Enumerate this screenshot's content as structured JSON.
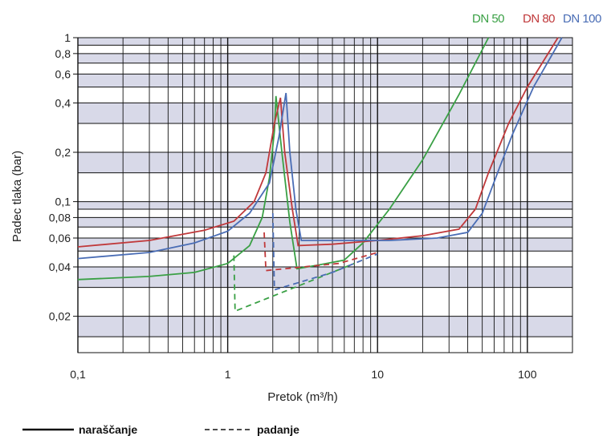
{
  "chart_data": {
    "type": "line",
    "xlabel": "Pretok (m³/h)",
    "ylabel": "Padec tlaka (bar)",
    "xscale": "log",
    "yscale": "log",
    "xlim": [
      0.1,
      200
    ],
    "ylim": [
      0.012,
      1
    ],
    "grid": true,
    "x_ticks": [
      {
        "value": 0.1,
        "label": "0,1"
      },
      {
        "value": 1,
        "label": "1"
      },
      {
        "value": 10,
        "label": "10"
      },
      {
        "value": 100,
        "label": "100"
      }
    ],
    "y_ticks": [
      {
        "value": 1,
        "label": "1"
      },
      {
        "value": 0.8,
        "label": "0,8"
      },
      {
        "value": 0.6,
        "label": "0,6"
      },
      {
        "value": 0.4,
        "label": "0,4"
      },
      {
        "value": 0.2,
        "label": "0,2"
      },
      {
        "value": 0.1,
        "label": "0,1"
      },
      {
        "value": 0.08,
        "label": "0,08"
      },
      {
        "value": 0.06,
        "label": "0,06"
      },
      {
        "value": 0.04,
        "label": "0,04"
      },
      {
        "value": 0.02,
        "label": "0,02"
      }
    ],
    "band_boundaries": [
      1,
      0.9,
      0.8,
      0.7,
      0.6,
      0.5,
      0.4,
      0.3,
      0.2,
      0.15,
      0.1,
      0.09,
      0.08,
      0.07,
      0.06,
      0.05,
      0.04,
      0.03,
      0.02,
      0.015,
      0.012
    ],
    "series": [
      {
        "name": "DN 50",
        "color": "#3aa045",
        "rising": [
          [
            0.1,
            0.0335
          ],
          [
            0.3,
            0.035
          ],
          [
            0.6,
            0.037
          ],
          [
            1,
            0.042
          ],
          [
            1.4,
            0.054
          ],
          [
            1.7,
            0.08
          ],
          [
            1.9,
            0.14
          ],
          [
            2.05,
            0.27
          ],
          [
            2.1,
            0.44
          ],
          [
            2.3,
            0.2
          ],
          [
            2.6,
            0.075
          ],
          [
            2.9,
            0.039
          ],
          [
            4,
            0.041
          ],
          [
            6,
            0.044
          ],
          [
            8,
            0.056
          ],
          [
            12,
            0.09
          ],
          [
            20,
            0.18
          ],
          [
            35,
            0.45
          ],
          [
            55,
            1.0
          ]
        ],
        "falling": [
          [
            1.1,
            0.047
          ],
          [
            1.12,
            0.0215
          ],
          [
            2.8,
            0.03
          ],
          [
            7,
            0.042
          ]
        ]
      },
      {
        "name": "DN 80",
        "color": "#c0393b",
        "rising": [
          [
            0.1,
            0.053
          ],
          [
            0.3,
            0.058
          ],
          [
            0.7,
            0.067
          ],
          [
            1.1,
            0.076
          ],
          [
            1.5,
            0.1
          ],
          [
            1.8,
            0.15
          ],
          [
            2.05,
            0.3
          ],
          [
            2.25,
            0.43
          ],
          [
            2.4,
            0.2
          ],
          [
            2.7,
            0.09
          ],
          [
            2.95,
            0.054
          ],
          [
            5,
            0.055
          ],
          [
            10,
            0.058
          ],
          [
            20,
            0.062
          ],
          [
            35,
            0.068
          ],
          [
            45,
            0.09
          ],
          [
            55,
            0.15
          ],
          [
            75,
            0.3
          ],
          [
            100,
            0.5
          ],
          [
            160,
            1.0
          ]
        ],
        "falling": [
          [
            1.75,
            0.065
          ],
          [
            1.8,
            0.038
          ],
          [
            5.5,
            0.042
          ],
          [
            10,
            0.049
          ]
        ]
      },
      {
        "name": "DN 100",
        "color": "#4a6db5",
        "rising": [
          [
            0.1,
            0.045
          ],
          [
            0.3,
            0.049
          ],
          [
            0.6,
            0.056
          ],
          [
            1,
            0.066
          ],
          [
            1.4,
            0.085
          ],
          [
            1.9,
            0.13
          ],
          [
            2.2,
            0.25
          ],
          [
            2.45,
            0.46
          ],
          [
            2.6,
            0.2
          ],
          [
            2.85,
            0.09
          ],
          [
            3.1,
            0.058
          ],
          [
            6,
            0.058
          ],
          [
            12,
            0.058
          ],
          [
            25,
            0.06
          ],
          [
            40,
            0.065
          ],
          [
            50,
            0.085
          ],
          [
            65,
            0.16
          ],
          [
            80,
            0.26
          ],
          [
            110,
            0.5
          ],
          [
            170,
            1.0
          ]
        ],
        "falling": [
          [
            2.0,
            0.085
          ],
          [
            2.05,
            0.029
          ],
          [
            5,
            0.037
          ],
          [
            10,
            0.048
          ]
        ]
      }
    ],
    "legend_top": [
      "DN 50",
      "DN 80",
      "DN 100"
    ],
    "legend_bottom": {
      "solid": "naraščanje",
      "dashed": "padanje"
    },
    "colors": {
      "band": "#d8d9e8",
      "grid": "#111111",
      "background": "#ffffff"
    }
  }
}
